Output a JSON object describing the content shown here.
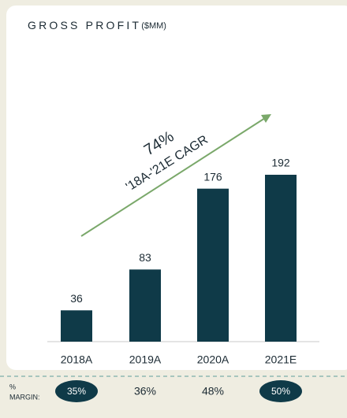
{
  "chart_data": {
    "type": "bar",
    "title": "GROSS PROFIT",
    "subtitle": "($MM)",
    "categories": [
      "2018A",
      "2019A",
      "2020A",
      "2021E"
    ],
    "values": [
      36,
      83,
      176,
      192
    ],
    "color": "#0f3a48",
    "annotation": {
      "value_label": "74%",
      "text": "'18A-'21E CAGR",
      "color": "#7aa86a"
    },
    "margins": {
      "label": [
        "%",
        "MARGIN:"
      ],
      "values": [
        35,
        36,
        48,
        50
      ],
      "value_labels": [
        "35%",
        "36%",
        "48%",
        "50%"
      ],
      "highlight": [
        true,
        false,
        false,
        true
      ]
    }
  }
}
